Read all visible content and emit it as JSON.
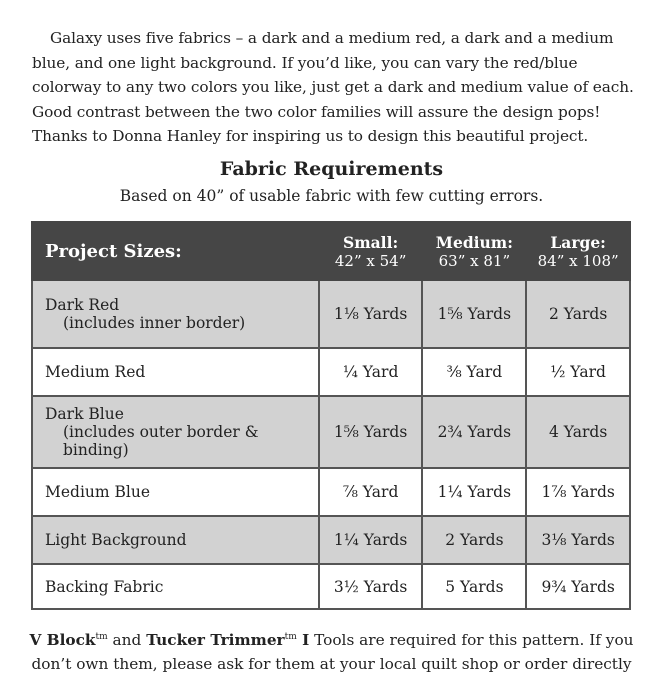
{
  "intro": "Galaxy uses five fabrics – a dark and a medium red, a dark and a medium blue, and one light background.  If you’d like, you can vary the red/blue colorway to any two colors you like, just get a dark and medium value of each.  Good contrast between the two color families will assure the design pops! Thanks to Donna Hanley for inspiring us to design this beautiful project.",
  "title": "Fabric Requirements",
  "subtitle": "Based on 40” of usable fabric with few cutting errors.",
  "table": {
    "header_label": "Project Sizes:",
    "sizes": [
      {
        "name": "Small:",
        "dims": "42” x 54”"
      },
      {
        "name": "Medium:",
        "dims": "63” x 81”"
      },
      {
        "name": "Large:",
        "dims": "84” x 108”"
      }
    ],
    "rows": [
      {
        "fabric": "Dark Red",
        "note": "(includes inner border)",
        "values": [
          "1⅛ Yards",
          "1⅝ Yards",
          "2 Yards"
        ]
      },
      {
        "fabric": "Medium Red",
        "values": [
          "¼ Yard",
          "⅜ Yard",
          "½ Yard"
        ]
      },
      {
        "fabric": "Dark Blue",
        "note": "(includes outer border & binding)",
        "values": [
          "1⅝ Yards",
          "2¾ Yards",
          "4 Yards"
        ]
      },
      {
        "fabric": "Medium Blue",
        "values": [
          "⅞ Yard",
          "1¼ Yards",
          "1⅞ Yards"
        ]
      },
      {
        "fabric": "Light Background",
        "values": [
          "1¼ Yards",
          "2 Yards",
          "3⅛ Yards"
        ]
      },
      {
        "fabric": "Backing Fabric",
        "values": [
          "3½ Yards",
          "5 Yards",
          "9¾ Yards"
        ]
      }
    ]
  },
  "footer": {
    "tool1": "V Block",
    "tm": "tm",
    "and": " and ",
    "tool2": "Tucker Trimmer",
    "tool2_suffix": " I",
    "text1": " Tools are required for this pattern.  If you",
    "text2": "don’t own them, please ask for them at your local quilt shop or order directly"
  }
}
